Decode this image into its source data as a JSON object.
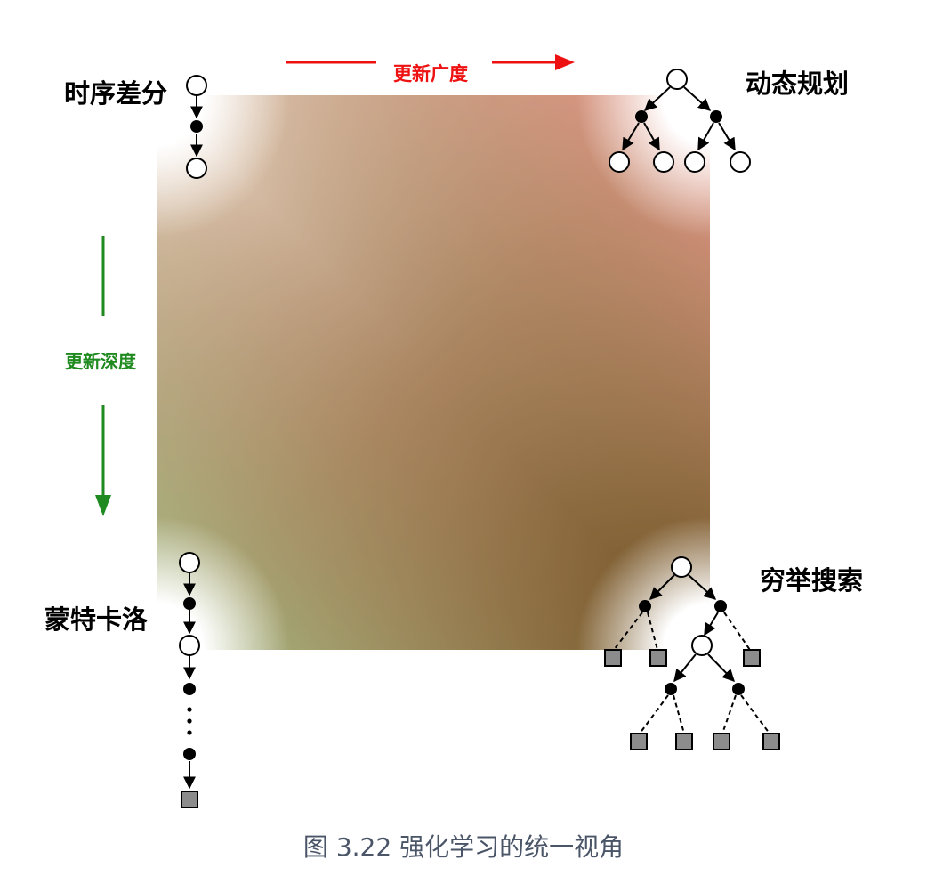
{
  "labels": {
    "top_left": "时序差分",
    "top_right": "动态规划",
    "bottom_left": "蒙特卡洛",
    "bottom_right": "穷举搜索"
  },
  "axes": {
    "breadth": {
      "label": "更新广度",
      "color": "#ee1111"
    },
    "depth": {
      "label": "更新深度",
      "color": "#1f8a1f"
    }
  },
  "caption": "图 3.22 强化学习的统一视角",
  "colors": {
    "top_left": "#ffffff",
    "top_right": "#f29a98",
    "bottom_left": "#9ccf9a",
    "bottom_right": "#6a3a14",
    "center": "#a07a55",
    "node_fill_state": "#ffffff",
    "node_fill_action": "#000000",
    "terminal_fill": "#8c8c8c"
  }
}
